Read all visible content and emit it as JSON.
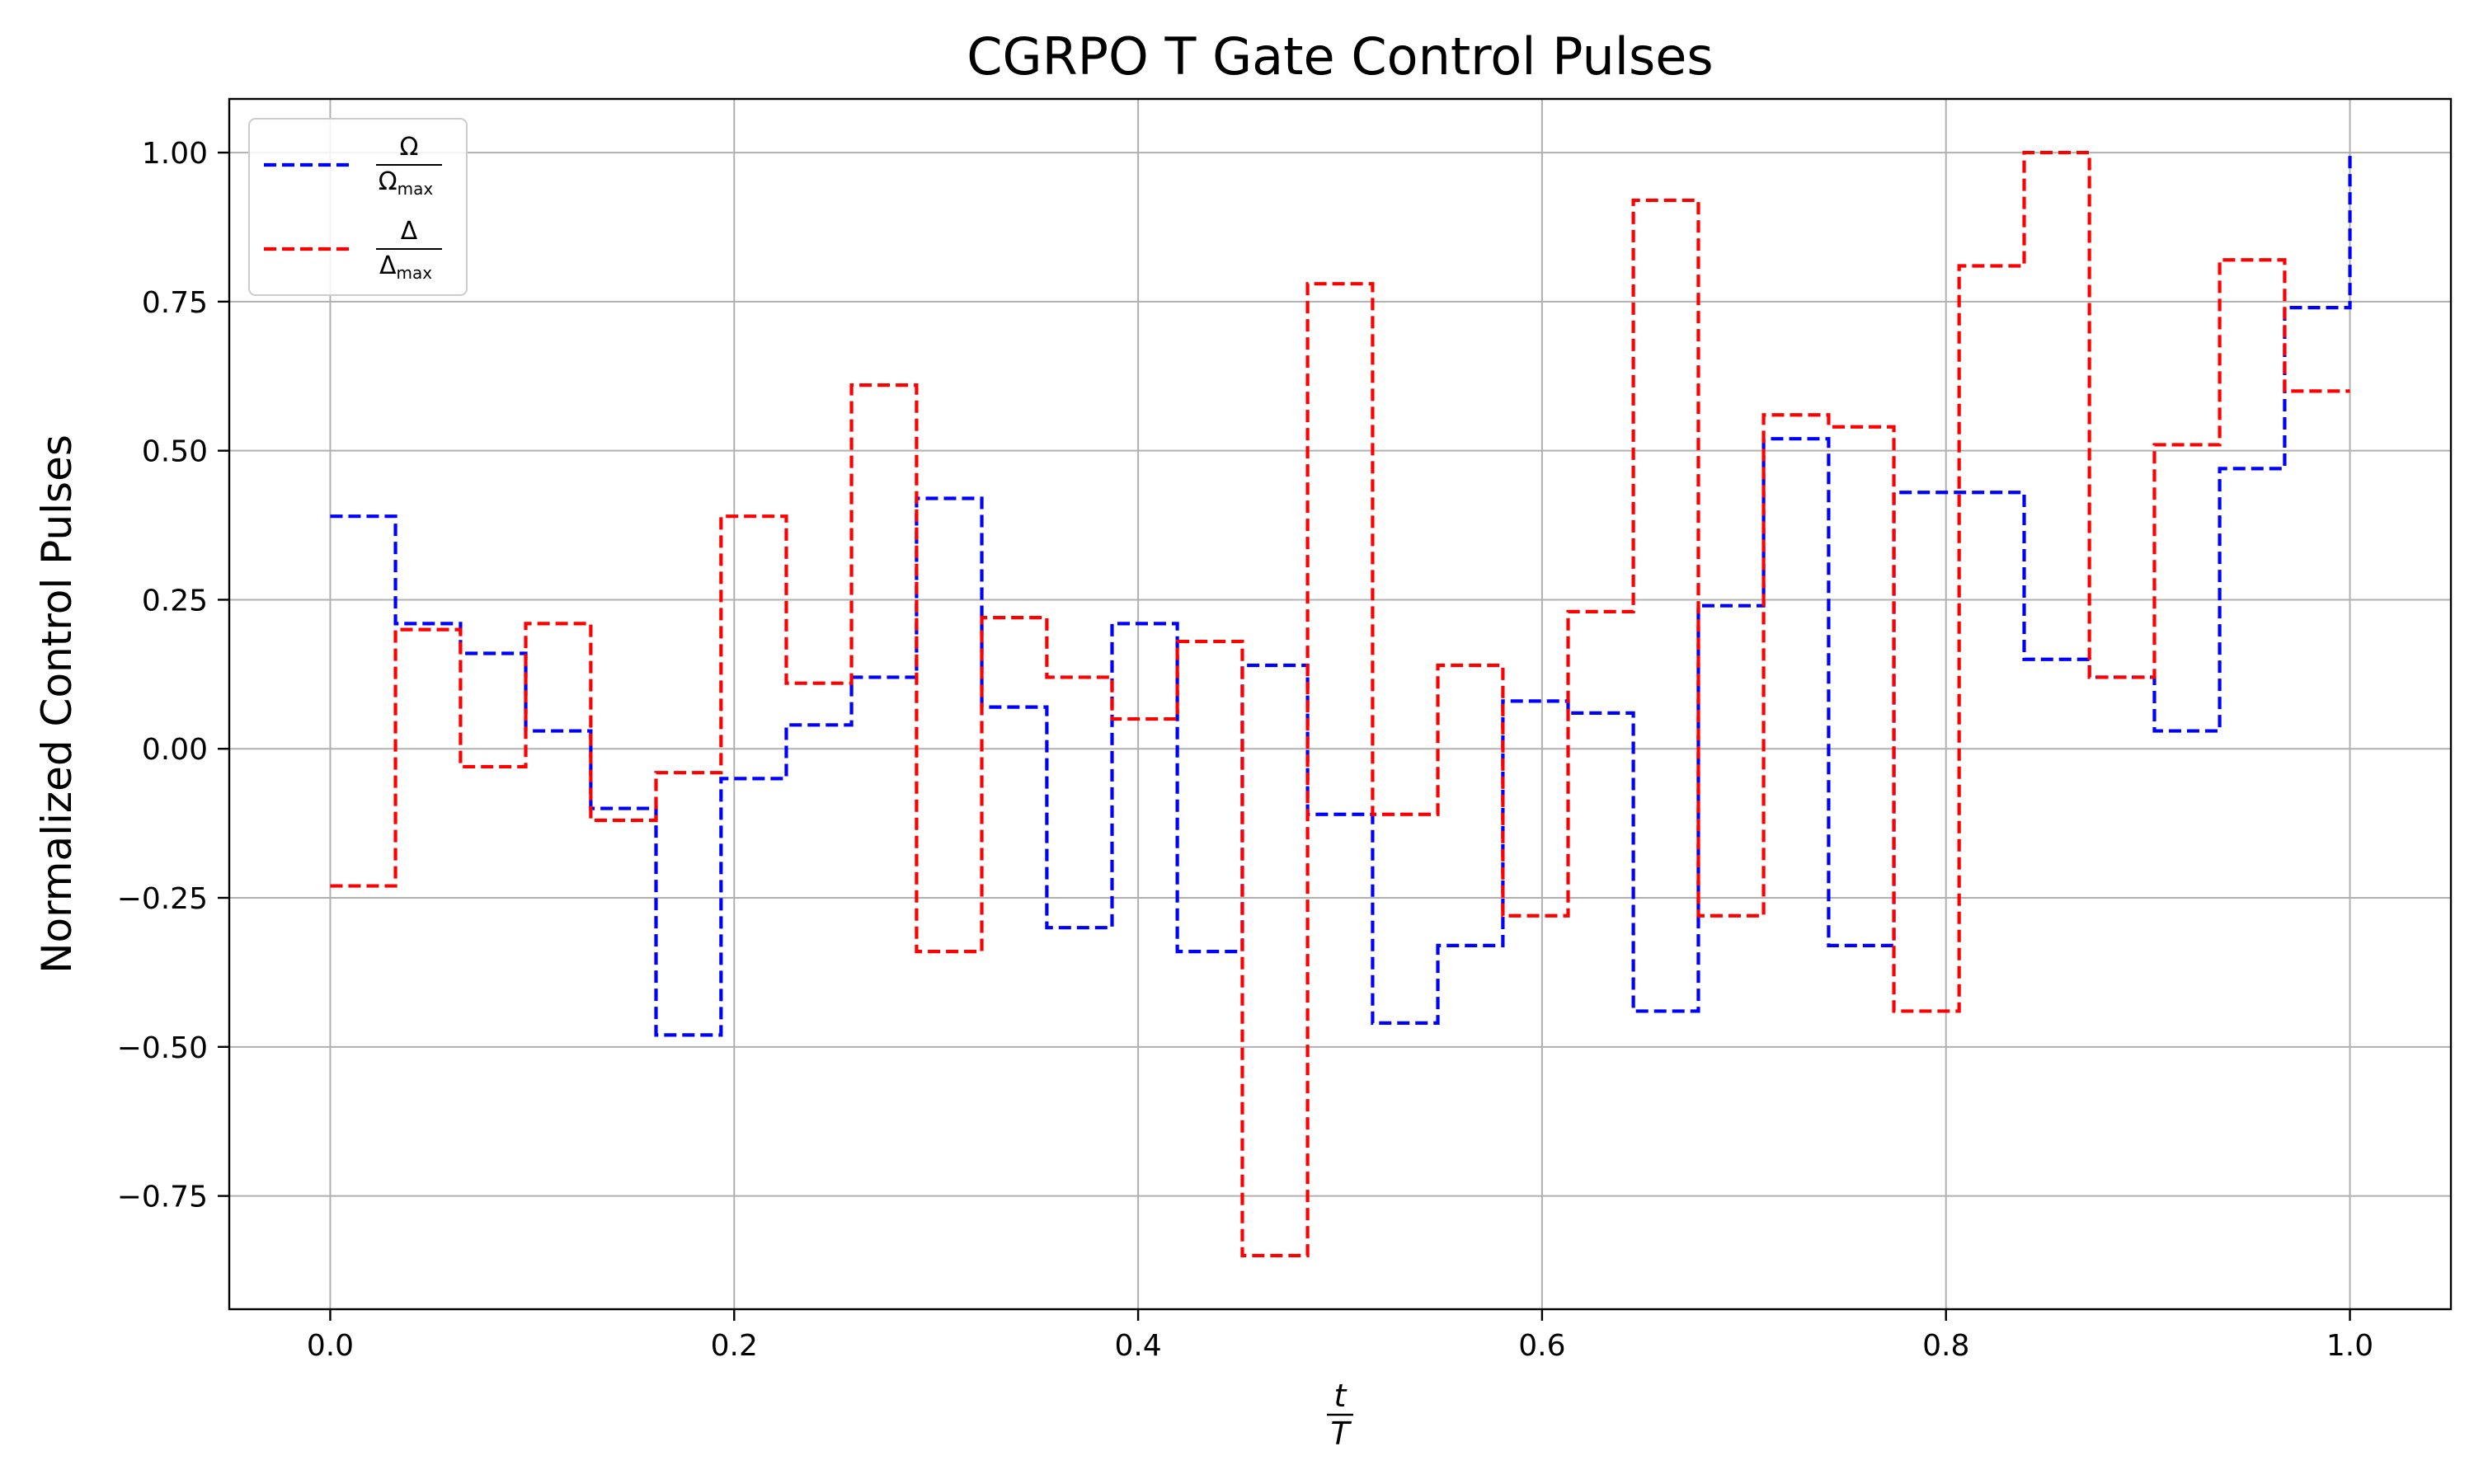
{
  "chart_data": {
    "type": "line",
    "title": "CGRPO T Gate Control Pulses",
    "xlabel": {
      "numerator": "t",
      "denominator": "T"
    },
    "ylabel": "Normalized Control Pulses",
    "xlim": [
      -0.05,
      1.05
    ],
    "ylim": [
      -0.94,
      1.09
    ],
    "xticks": [
      0.0,
      0.2,
      0.4,
      0.6,
      0.8,
      1.0
    ],
    "xtick_labels": [
      "0.0",
      "0.2",
      "0.4",
      "0.6",
      "0.8",
      "1.0"
    ],
    "yticks": [
      -0.75,
      -0.5,
      -0.25,
      0.0,
      0.25,
      0.5,
      0.75,
      1.0
    ],
    "ytick_labels": [
      "−0.75",
      "−0.50",
      "−0.25",
      "0.00",
      "0.25",
      "0.50",
      "0.75",
      "1.00"
    ],
    "grid": true,
    "legend_position": "top-left",
    "step_edges": [
      0.0,
      0.0323,
      0.0645,
      0.0968,
      0.129,
      0.1613,
      0.1935,
      0.2258,
      0.2581,
      0.2903,
      0.3226,
      0.3548,
      0.3871,
      0.4194,
      0.4516,
      0.4839,
      0.5161,
      0.5484,
      0.5806,
      0.6129,
      0.6452,
      0.6774,
      0.7097,
      0.7419,
      0.7742,
      0.8065,
      0.8387,
      0.871,
      0.9032,
      0.9355,
      0.9677,
      1.0
    ],
    "series": [
      {
        "name": "Ω/Ωmax",
        "legend": {
          "numerator": "Ω",
          "denominator_base": "Ω",
          "denominator_sub": "max"
        },
        "color": "#0000ff",
        "values": [
          0.39,
          0.21,
          0.16,
          0.03,
          -0.1,
          -0.48,
          -0.05,
          0.04,
          0.12,
          0.42,
          0.07,
          -0.3,
          0.21,
          -0.34,
          0.14,
          -0.11,
          -0.46,
          -0.33,
          0.08,
          0.06,
          -0.44,
          0.24,
          0.52,
          -0.33,
          0.43,
          0.43,
          0.15,
          0.12,
          0.03,
          0.47,
          0.74
        ],
        "end_value": 1.0
      },
      {
        "name": "Δ/Δmax",
        "legend": {
          "numerator": "Δ",
          "denominator_base": "Δ",
          "denominator_sub": "max"
        },
        "color": "#ff0000",
        "values": [
          -0.23,
          0.2,
          -0.03,
          0.21,
          -0.12,
          -0.04,
          0.39,
          0.11,
          0.61,
          -0.34,
          0.22,
          0.12,
          0.05,
          0.18,
          -0.85,
          0.78,
          -0.11,
          0.14,
          -0.28,
          0.23,
          0.92,
          -0.28,
          0.56,
          0.54,
          -0.44,
          0.81,
          1.0,
          0.12,
          0.51,
          0.82,
          0.6
        ]
      }
    ]
  }
}
